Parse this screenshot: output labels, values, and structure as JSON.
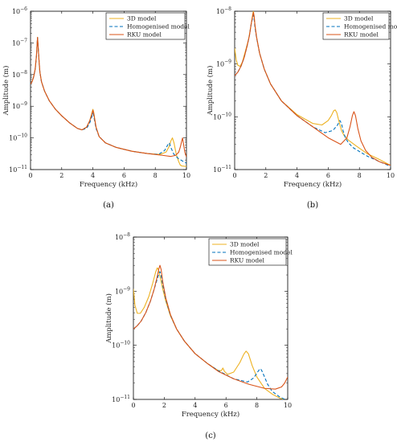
{
  "colors": {
    "model_3d": "#EDB120",
    "homogenised": "#0072BD",
    "rku": "#D95319"
  },
  "chart_data": [
    {
      "type": "line",
      "panel_label": "(a)",
      "xlabel": "Frequency (kHz)",
      "ylabel": "Amplitude (m)",
      "xlim": [
        0,
        10
      ],
      "ylim_exp": [
        -11,
        -6
      ],
      "ylog": true,
      "grid": false,
      "legend_position": "top-right",
      "x_ticks": [
        "0",
        "2",
        "4",
        "6",
        "8",
        "10"
      ],
      "y_tick_bases": [
        "10",
        "10",
        "10",
        "10",
        "10",
        "10"
      ],
      "y_tick_exps": [
        "−11",
        "−10",
        "−9",
        "−8",
        "−7",
        "−6"
      ],
      "x_tick_values": [
        0,
        2,
        4,
        6,
        8,
        10
      ],
      "y_tick_values": [
        -11,
        -10,
        -9,
        -8,
        -7,
        -6
      ],
      "series": [
        {
          "name": "3D model",
          "style": "solid",
          "color_key": "model_3d",
          "x": [
            0,
            0.1,
            0.2,
            0.3,
            0.38,
            0.42,
            0.45,
            0.5,
            0.55,
            0.6,
            0.7,
            0.9,
            1.2,
            1.6,
            2.0,
            2.5,
            3.0,
            3.3,
            3.6,
            3.8,
            3.95,
            4.0,
            4.05,
            4.2,
            4.4,
            4.8,
            5.5,
            6.5,
            7.5,
            8.3,
            8.7,
            8.9,
            9.0,
            9.1,
            9.2,
            9.35,
            9.5,
            9.6,
            9.7,
            10
          ],
          "y": [
            5e-09,
            6e-09,
            8.5e-09,
            1.5e-08,
            4e-08,
            9e-08,
            1.5e-07,
            6e-08,
            2.5e-08,
            1.2e-08,
            6e-09,
            3e-09,
            1.5e-09,
            8e-10,
            5e-10,
            3e-10,
            2e-10,
            1.8e-10,
            2.2e-10,
            3.5e-10,
            6.5e-10,
            8e-10,
            6.5e-10,
            2.2e-10,
            1.1e-10,
            7e-11,
            5e-11,
            3.8e-11,
            3.2e-11,
            3e-11,
            3.6e-11,
            5.5e-11,
            8e-11,
            1e-10,
            7e-11,
            3e-11,
            1.8e-11,
            1.4e-11,
            1.3e-11,
            1.25e-11
          ]
        },
        {
          "name": "Homogenised model",
          "style": "dashed",
          "color_key": "homogenised",
          "x": [
            0,
            0.1,
            0.2,
            0.3,
            0.38,
            0.42,
            0.45,
            0.5,
            0.55,
            0.6,
            0.7,
            0.9,
            1.2,
            1.6,
            2.0,
            2.5,
            3.0,
            3.3,
            3.6,
            3.8,
            3.95,
            4.0,
            4.05,
            4.2,
            4.4,
            4.8,
            5.5,
            6.5,
            7.5,
            8.2,
            8.6,
            8.8,
            8.9,
            9.0,
            9.2,
            9.5,
            9.8,
            10
          ],
          "y": [
            5e-09,
            6e-09,
            8.5e-09,
            1.5e-08,
            4e-08,
            9e-08,
            1.45e-07,
            6e-08,
            2.5e-08,
            1.2e-08,
            6e-09,
            3e-09,
            1.5e-09,
            8e-10,
            5e-10,
            3e-10,
            2e-10,
            1.8e-10,
            2e-10,
            3e-10,
            5e-10,
            6e-10,
            5e-10,
            2e-10,
            1.1e-10,
            7e-11,
            5e-11,
            3.8e-11,
            3.2e-11,
            3e-11,
            4e-11,
            6e-11,
            7e-11,
            5e-11,
            3e-11,
            2.2e-11,
            1.8e-11,
            1.6e-11
          ]
        },
        {
          "name": "RKU model",
          "style": "solid",
          "color_key": "rku",
          "x": [
            0,
            0.1,
            0.2,
            0.3,
            0.38,
            0.42,
            0.45,
            0.5,
            0.55,
            0.6,
            0.7,
            0.9,
            1.2,
            1.6,
            2.0,
            2.5,
            3.0,
            3.3,
            3.6,
            3.8,
            3.95,
            4.0,
            4.05,
            4.2,
            4.4,
            4.8,
            5.5,
            6.5,
            7.5,
            8.5,
            9.0,
            9.3,
            9.5,
            9.6,
            9.7,
            9.75,
            9.8,
            9.9,
            10
          ],
          "y": [
            5e-09,
            6e-09,
            8.5e-09,
            1.5e-08,
            4e-08,
            9e-08,
            1.5e-07,
            6e-08,
            2.5e-08,
            1.2e-08,
            6e-09,
            3e-09,
            1.5e-09,
            8e-10,
            5e-10,
            3e-10,
            2e-10,
            1.8e-10,
            2.2e-10,
            3.5e-10,
            6e-10,
            7.5e-10,
            6e-10,
            2.2e-10,
            1.1e-10,
            7e-11,
            5e-11,
            3.8e-11,
            3.2e-11,
            2.8e-11,
            2.6e-11,
            2.8e-11,
            3.5e-11,
            5e-11,
            8e-11,
            1e-10,
            7e-11,
            3.5e-11,
            2.5e-11
          ]
        }
      ]
    },
    {
      "type": "line",
      "panel_label": "(b)",
      "xlabel": "Frequency (kHz)",
      "ylabel": "Amplitude (m)",
      "xlim": [
        0,
        10
      ],
      "ylim_exp": [
        -11,
        -8
      ],
      "ylog": true,
      "grid": false,
      "legend_position": "top-right",
      "x_ticks": [
        "0",
        "2",
        "4",
        "6",
        "8",
        "10"
      ],
      "y_tick_bases": [
        "10",
        "10",
        "10",
        "10"
      ],
      "y_tick_exps": [
        "−11",
        "−10",
        "−9",
        "−8"
      ],
      "x_tick_values": [
        0,
        2,
        4,
        6,
        8,
        10
      ],
      "y_tick_values": [
        -11,
        -10,
        -9,
        -8
      ],
      "series": [
        {
          "name": "3D model",
          "style": "solid",
          "color_key": "model_3d",
          "x": [
            0,
            0.1,
            0.2,
            0.35,
            0.5,
            0.7,
            0.9,
            1.05,
            1.15,
            1.2,
            1.25,
            1.3,
            1.4,
            1.6,
            1.9,
            2.3,
            3.0,
            4.0,
            5.0,
            5.6,
            6.0,
            6.2,
            6.35,
            6.45,
            6.55,
            6.7,
            6.85,
            7.0,
            7.3,
            7.8,
            8.5,
            9.2,
            10
          ],
          "y": [
            2e-09,
            1.2e-09,
            9.5e-10,
            9e-10,
            1.1e-09,
            1.8e-09,
            3e-09,
            5.5e-09,
            8.5e-09,
            1e-08,
            8e-09,
            5.5e-09,
            3.3e-09,
            1.6e-09,
            8e-10,
            4.2e-10,
            2e-10,
            1.1e-10,
            7.5e-11,
            7e-11,
            8.5e-11,
            1.05e-10,
            1.3e-10,
            1.35e-10,
            1.2e-10,
            8e-11,
            5.5e-11,
            4.5e-11,
            3.6e-11,
            2.8e-11,
            2e-11,
            1.6e-11,
            1.2e-11
          ]
        },
        {
          "name": "Homogenised model",
          "style": "dashed",
          "color_key": "homogenised",
          "x": [
            0,
            0.2,
            0.4,
            0.6,
            0.8,
            0.95,
            1.05,
            1.15,
            1.2,
            1.25,
            1.3,
            1.4,
            1.6,
            1.9,
            2.3,
            3.0,
            4.0,
            5.0,
            5.8,
            6.3,
            6.6,
            6.75,
            6.85,
            6.95,
            7.1,
            7.3,
            7.6,
            8.0,
            8.5,
            9.2,
            10
          ],
          "y": [
            6e-10,
            7e-10,
            9e-10,
            1.3e-09,
            2.2e-09,
            3.5e-09,
            5.5e-09,
            7.5e-09,
            8.5e-09,
            7e-09,
            5e-09,
            3.2e-09,
            1.6e-09,
            8e-10,
            4.2e-10,
            2e-10,
            1.05e-10,
            6.5e-11,
            5e-11,
            5.5e-11,
            7e-11,
            8.5e-11,
            7.5e-11,
            5.5e-11,
            4e-11,
            3.2e-11,
            2.6e-11,
            2.2e-11,
            1.8e-11,
            1.45e-11,
            1.15e-11
          ]
        },
        {
          "name": "RKU model",
          "style": "solid",
          "color_key": "rku",
          "x": [
            0,
            0.2,
            0.4,
            0.6,
            0.8,
            0.95,
            1.05,
            1.15,
            1.2,
            1.25,
            1.3,
            1.4,
            1.6,
            1.9,
            2.3,
            3.0,
            4.0,
            5.0,
            6.0,
            6.8,
            7.2,
            7.4,
            7.55,
            7.65,
            7.75,
            7.9,
            8.1,
            8.4,
            8.8,
            9.3,
            10
          ],
          "y": [
            6e-10,
            7e-10,
            9e-10,
            1.3e-09,
            2.2e-09,
            3.5e-09,
            5.5e-09,
            8e-09,
            9.5e-09,
            8e-09,
            5.5e-09,
            3.3e-09,
            1.6e-09,
            8e-10,
            4.2e-10,
            2e-10,
            1.05e-10,
            6.5e-11,
            4e-11,
            3e-11,
            4e-11,
            6.5e-11,
            1.05e-10,
            1.25e-10,
            1.05e-10,
            6e-11,
            3.5e-11,
            2.3e-11,
            1.7e-11,
            1.4e-11,
            1.2e-11
          ]
        }
      ]
    },
    {
      "type": "line",
      "panel_label": "(c)",
      "xlabel": "Frequency (kHz)",
      "ylabel": "Amplitude (m)",
      "xlim": [
        0,
        10
      ],
      "ylim_exp": [
        -11,
        -8
      ],
      "ylog": true,
      "grid": false,
      "legend_position": "top-right",
      "x_ticks": [
        "0",
        "2",
        "4",
        "6",
        "8",
        "10"
      ],
      "y_tick_bases": [
        "10",
        "10",
        "10",
        "10"
      ],
      "y_tick_exps": [
        "−11",
        "−10",
        "−9",
        "−8"
      ],
      "x_tick_values": [
        0,
        2,
        4,
        6,
        8,
        10
      ],
      "y_tick_values": [
        -11,
        -10,
        -9,
        -8
      ],
      "series": [
        {
          "name": "3D model",
          "style": "solid",
          "color_key": "model_3d",
          "x": [
            0,
            0.1,
            0.25,
            0.45,
            0.7,
            1.0,
            1.25,
            1.45,
            1.55,
            1.62,
            1.7,
            1.78,
            1.9,
            2.1,
            2.4,
            2.8,
            3.3,
            4.0,
            4.8,
            5.5,
            5.7,
            5.8,
            5.9,
            6.1,
            6.5,
            6.9,
            7.15,
            7.3,
            7.45,
            7.7,
            8.0,
            8.5,
            9.0,
            9.5,
            10
          ],
          "y": [
            1.1e-09,
            5.5e-10,
            3.9e-10,
            3.9e-10,
            5e-10,
            8e-10,
            1.4e-09,
            2.3e-09,
            2.7e-09,
            2.5e-09,
            2e-09,
            1.6e-09,
            1.1e-09,
            6.5e-10,
            3.5e-10,
            2e-10,
            1.2e-10,
            7e-11,
            4.6e-11,
            3.4e-11,
            3.4e-11,
            3.8e-11,
            3.3e-11,
            2.9e-11,
            3.2e-11,
            4.8e-11,
            6.8e-11,
            7.8e-11,
            7e-11,
            4.2e-11,
            2.6e-11,
            1.6e-11,
            1.25e-11,
            1.05e-11,
            9.5e-12
          ]
        },
        {
          "name": "Homogenised model",
          "style": "dashed",
          "color_key": "homogenised",
          "x": [
            0,
            0.25,
            0.5,
            0.8,
            1.1,
            1.35,
            1.55,
            1.65,
            1.72,
            1.8,
            1.9,
            2.1,
            2.4,
            2.8,
            3.3,
            4.0,
            4.8,
            5.5,
            6.5,
            7.4,
            7.8,
            8.05,
            8.2,
            8.3,
            8.45,
            8.7,
            9.0,
            9.5,
            10
          ],
          "y": [
            2e-10,
            2.3e-10,
            2.8e-10,
            4e-10,
            6.5e-10,
            1.1e-09,
            1.7e-09,
            2.1e-09,
            2.3e-09,
            1.9e-09,
            1.3e-09,
            7e-10,
            3.6e-10,
            2e-10,
            1.2e-10,
            7e-11,
            4.6e-11,
            3.4e-11,
            2.4e-11,
            2.1e-11,
            2.5e-11,
            3.2e-11,
            3.7e-11,
            3.5e-11,
            2.8e-11,
            1.9e-11,
            1.4e-11,
            1.1e-11,
            9.5e-12
          ]
        },
        {
          "name": "RKU model",
          "style": "solid",
          "color_key": "rku",
          "x": [
            0,
            0.25,
            0.5,
            0.8,
            1.1,
            1.35,
            1.55,
            1.65,
            1.72,
            1.8,
            1.9,
            2.1,
            2.4,
            2.8,
            3.3,
            4.0,
            4.8,
            5.5,
            6.5,
            7.5,
            8.5,
            9.2,
            9.6,
            9.8,
            10
          ],
          "y": [
            2e-10,
            2.3e-10,
            2.8e-10,
            4e-10,
            6.5e-10,
            1.1e-09,
            1.9e-09,
            2.6e-09,
            3e-09,
            2.5e-09,
            1.5e-09,
            7.5e-10,
            3.7e-10,
            2e-10,
            1.2e-10,
            7e-11,
            4.6e-11,
            3.3e-11,
            2.4e-11,
            1.9e-11,
            1.6e-11,
            1.55e-11,
            1.7e-11,
            2e-11,
            2.6e-11
          ]
        }
      ]
    }
  ]
}
